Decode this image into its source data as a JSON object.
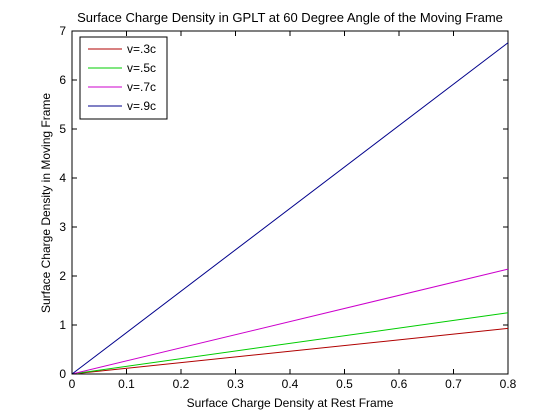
{
  "chart_data": {
    "type": "line",
    "title": "Surface Charge Density in GPLT at 60 Degree Angle of the Moving Frame",
    "xlabel": "Surface Charge Density at Rest Frame",
    "ylabel": "Surface Charge Density in Moving Frame",
    "xlim": [
      0,
      0.8
    ],
    "ylim": [
      0,
      7
    ],
    "x_ticks": [
      "0",
      "0.1",
      "0.2",
      "0.3",
      "0.4",
      "0.5",
      "0.6",
      "0.7",
      "0.8"
    ],
    "y_ticks": [
      "0",
      "1",
      "2",
      "3",
      "4",
      "5",
      "6",
      "7"
    ],
    "grid": false,
    "legend_position": "top-left",
    "series": [
      {
        "name": "v=.3c",
        "color": "#b00000",
        "x": [
          0,
          0.8
        ],
        "y": [
          0,
          0.93
        ]
      },
      {
        "name": "v=.5c",
        "color": "#00cc00",
        "x": [
          0,
          0.8
        ],
        "y": [
          0,
          1.25
        ]
      },
      {
        "name": "v=.7c",
        "color": "#cc00cc",
        "x": [
          0,
          0.8
        ],
        "y": [
          0,
          2.14
        ]
      },
      {
        "name": "v=.9c",
        "color": "#00008b",
        "x": [
          0,
          0.8
        ],
        "y": [
          0,
          6.76
        ]
      }
    ]
  }
}
